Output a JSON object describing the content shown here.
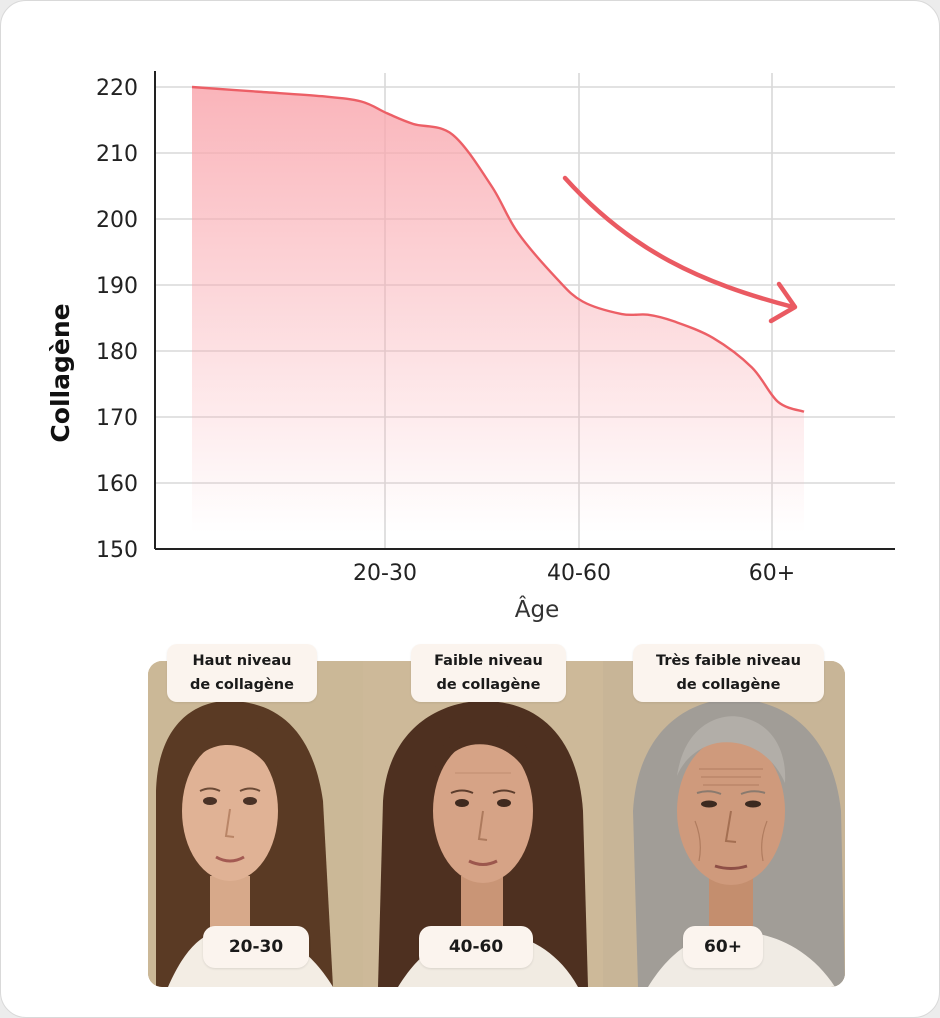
{
  "chart_data": {
    "type": "area",
    "xlabel": "Âge",
    "ylabel": "Collagène",
    "ylim": [
      150,
      220
    ],
    "yticks": [
      150,
      160,
      170,
      180,
      190,
      200,
      210,
      220
    ],
    "xticks": [
      "20-30",
      "40-60",
      "60+"
    ],
    "grid": true,
    "series": [
      {
        "x": [
          15,
          20,
          25,
          28,
          30,
          32,
          35,
          38,
          40,
          43,
          45,
          48,
          50,
          52,
          55,
          58,
          60,
          62
        ],
        "y": [
          220,
          219.3,
          218.6,
          217.8,
          216,
          214.4,
          212.8,
          205,
          198,
          191,
          187.5,
          185.6,
          185.5,
          184.5,
          182,
          177.5,
          172.3,
          170.8
        ]
      }
    ],
    "annotations": [
      "downward-trend-arrow"
    ],
    "colors": {
      "line": "#ec5f66",
      "fill": "#f9a7ae",
      "arrow": "#ea5a62"
    }
  },
  "panels": [
    {
      "label_line1": "Haut niveau",
      "label_line2": "de collagène",
      "age": "20-30"
    },
    {
      "label_line1": "Faible niveau",
      "label_line2": "de collagène",
      "age": "40-60"
    },
    {
      "label_line1": "Très faible niveau",
      "label_line2": "de collagène",
      "age": "60+"
    }
  ]
}
